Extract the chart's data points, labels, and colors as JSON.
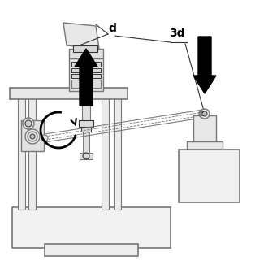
{
  "bg_color": "#ffffff",
  "lc": "#777777",
  "mc": "#aaaaaa",
  "dc": "#333333",
  "bk": "#000000",
  "label_d": "d",
  "label_3d": "3d",
  "fig_width": 3.2,
  "fig_height": 3.2,
  "dpi": 100,
  "xlim": [
    0,
    320
  ],
  "ylim": [
    320,
    0
  ]
}
